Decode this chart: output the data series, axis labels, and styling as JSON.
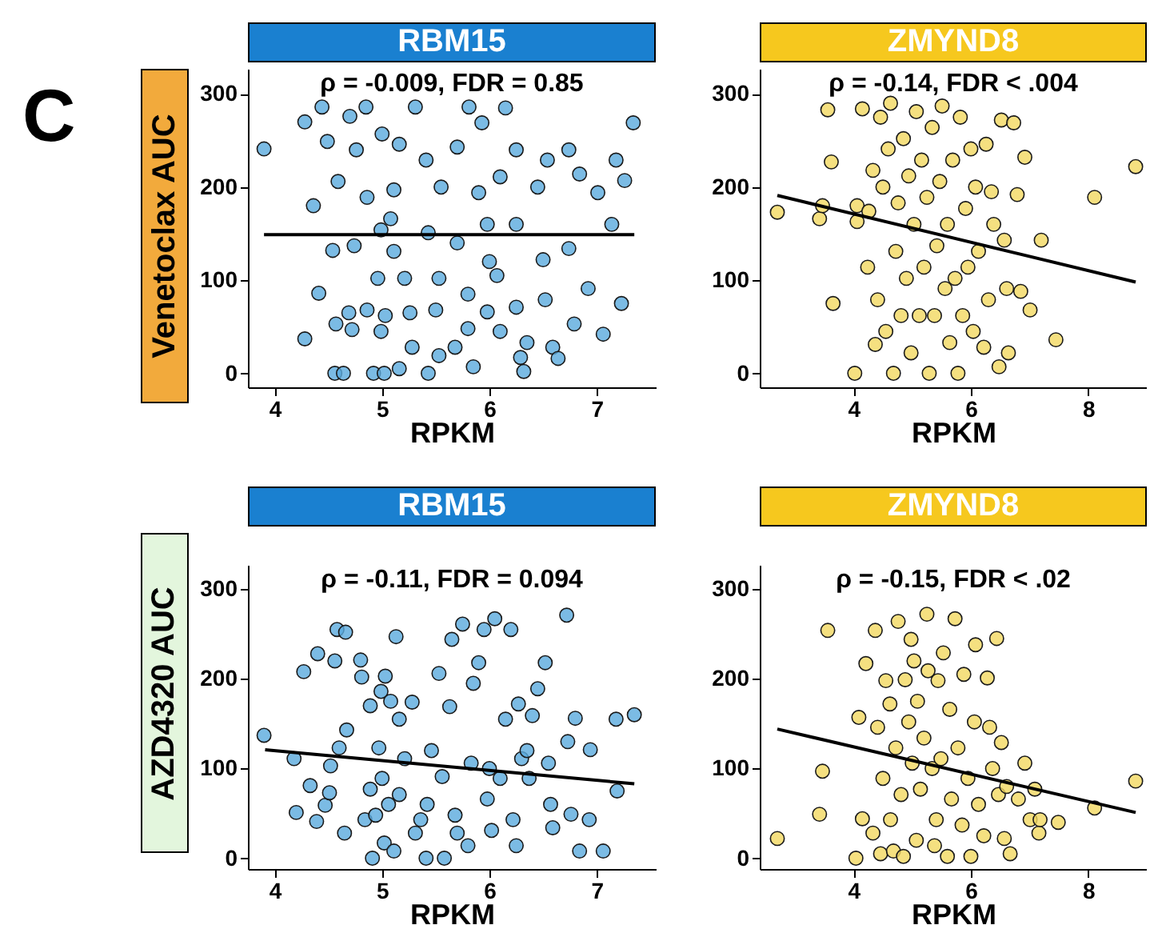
{
  "chart_data": [
    {
      "type": "scatter",
      "title": "RBM15",
      "xlabel": "RPKM",
      "ylabel": "Venetoclax AUC",
      "annotations": [
        "ρ = -0.009, FDR = 0.85",
        "C"
      ],
      "xlim": [
        3.75,
        7.55
      ],
      "xticks": [
        4,
        5,
        6,
        7
      ],
      "ylim": [
        -15,
        327
      ],
      "yticks": [
        0,
        100,
        200,
        300
      ],
      "grid": false,
      "series": [
        {
          "marker": "circle",
          "color": "#5aaadd",
          "x": [
            3.9,
            4.28,
            4.44,
            4.7,
            4.85,
            5.31,
            5.81,
            6.15,
            7.34,
            4.49,
            4.76,
            5.0,
            5.16,
            5.41,
            5.7,
            5.93,
            6.25,
            6.54,
            6.74,
            7.18,
            7.26,
            4.36,
            4.59,
            4.86,
            5.11,
            5.55,
            5.9,
            6.1,
            6.45,
            6.84,
            7.01,
            4.54,
            4.74,
            4.99,
            5.11,
            5.43,
            5.7,
            6.0,
            6.25,
            6.5,
            6.74,
            7.14,
            4.41,
            4.69,
            4.86,
            5.03,
            5.26,
            5.5,
            5.8,
            5.98,
            6.25,
            6.52,
            6.92,
            7.23,
            4.28,
            4.57,
            4.72,
            4.99,
            5.28,
            5.68,
            5.8,
            6.1,
            6.35,
            6.59,
            6.79,
            7.06,
            4.56,
            4.64,
            4.92,
            5.02,
            5.16,
            5.43,
            5.53,
            5.85,
            6.29,
            6.32,
            6.64,
            4.96,
            5.21,
            5.53,
            6.07,
            5.08,
            5.98
          ],
          "values": [
            241,
            270,
            286,
            276,
            286,
            286,
            286,
            285,
            269,
            249,
            240,
            257,
            246,
            229,
            243,
            269,
            240,
            229,
            240,
            229,
            207,
            180,
            206,
            189,
            197,
            200,
            194,
            211,
            200,
            214,
            194,
            132,
            137,
            154,
            131,
            151,
            140,
            120,
            160,
            122,
            134,
            160,
            86,
            65,
            68,
            62,
            65,
            68,
            85,
            66,
            71,
            79,
            91,
            75,
            37,
            53,
            47,
            45,
            28,
            28,
            48,
            45,
            33,
            28,
            53,
            42,
            0,
            0,
            0,
            0,
            5,
            0,
            19,
            7,
            17,
            2,
            16,
            102,
            102,
            102,
            105,
            166,
            160
          ]
        },
        {
          "type": "line",
          "marker": "none",
          "color": "#000000",
          "x": [
            3.9,
            7.35
          ],
          "values": [
            149,
            149
          ]
        }
      ]
    },
    {
      "type": "scatter",
      "title": "ZMYND8",
      "xlabel": "RPKM",
      "annotations": [
        "ρ = -0.14, FDR < .004"
      ],
      "xlim": [
        2.4,
        9.0
      ],
      "xticks": [
        4,
        6,
        8
      ],
      "ylim": [
        -15,
        327
      ],
      "yticks": [
        0,
        100,
        200,
        300
      ],
      "grid": false,
      "series": [
        {
          "marker": "circle",
          "color": "#f2d860",
          "x": [
            2.7,
            3.42,
            3.47,
            3.56,
            3.62,
            3.65,
            4.02,
            4.06,
            4.06,
            4.15,
            4.24,
            4.26,
            4.33,
            4.37,
            4.41,
            4.46,
            4.5,
            4.55,
            4.59,
            4.63,
            4.68,
            4.72,
            4.76,
            4.81,
            4.85,
            4.9,
            4.94,
            4.98,
            5.03,
            5.07,
            5.12,
            5.16,
            5.2,
            5.25,
            5.29,
            5.34,
            5.38,
            5.42,
            5.47,
            5.51,
            5.56,
            5.6,
            5.64,
            5.69,
            5.73,
            5.78,
            5.82,
            5.86,
            5.91,
            5.95,
            6.0,
            6.04,
            6.08,
            6.13,
            6.22,
            6.26,
            6.3,
            6.35,
            6.39,
            6.48,
            6.52,
            6.57,
            6.61,
            6.64,
            6.73,
            6.79,
            6.85,
            6.92,
            7.01,
            7.2,
            7.45,
            8.11,
            8.81
          ],
          "values": [
            173,
            166,
            180,
            283,
            227,
            75,
            0,
            180,
            163,
            284,
            114,
            174,
            218,
            31,
            79,
            275,
            200,
            45,
            241,
            290,
            0,
            131,
            183,
            62,
            252,
            102,
            212,
            22,
            160,
            281,
            62,
            229,
            114,
            189,
            0,
            264,
            62,
            137,
            206,
            287,
            91,
            160,
            33,
            229,
            102,
            0,
            275,
            62,
            177,
            114,
            241,
            45,
            200,
            131,
            28,
            246,
            79,
            195,
            160,
            7,
            272,
            143,
            91,
            22,
            269,
            192,
            88,
            232,
            68,
            143,
            36,
            189,
            222
          ]
        },
        {
          "type": "line",
          "marker": "none",
          "color": "#000000",
          "x": [
            2.7,
            8.81
          ],
          "values": [
            191,
            98
          ]
        }
      ]
    },
    {
      "type": "scatter",
      "title": "RBM15",
      "xlabel": "RPKM",
      "ylabel": "AZD4320 AUC",
      "annotations": [
        "ρ = -0.11, FDR = 0.094"
      ],
      "xlim": [
        3.75,
        7.55
      ],
      "xticks": [
        4,
        5,
        6,
        7
      ],
      "ylim": [
        -12,
        327
      ],
      "yticks": [
        0,
        100,
        200,
        300
      ],
      "grid": false,
      "series": [
        {
          "marker": "circle",
          "color": "#5aaadd",
          "x": [
            3.9,
            4.18,
            4.2,
            4.27,
            4.33,
            4.39,
            4.4,
            4.47,
            4.51,
            4.52,
            4.56,
            4.58,
            4.6,
            4.65,
            4.66,
            4.67,
            4.8,
            4.81,
            4.84,
            4.89,
            4.89,
            4.91,
            4.94,
            4.97,
            4.99,
            5.0,
            5.02,
            5.03,
            5.06,
            5.08,
            5.11,
            5.13,
            5.16,
            5.16,
            5.21,
            5.28,
            5.31,
            5.36,
            5.41,
            5.42,
            5.46,
            5.53,
            5.56,
            5.58,
            5.63,
            5.65,
            5.68,
            5.7,
            5.75,
            5.8,
            5.83,
            5.85,
            5.9,
            5.95,
            5.98,
            6.0,
            6.02,
            6.05,
            6.1,
            6.15,
            6.2,
            6.22,
            6.25,
            6.27,
            6.3,
            6.35,
            6.37,
            6.4,
            6.45,
            6.52,
            6.55,
            6.57,
            6.59,
            6.72,
            6.73,
            6.76,
            6.8,
            6.84,
            6.93,
            6.94,
            7.06,
            7.18,
            7.19,
            7.35
          ],
          "values": [
            137,
            111,
            51,
            208,
            81,
            41,
            228,
            59,
            73,
            103,
            220,
            255,
            123,
            28,
            252,
            143,
            221,
            202,
            43,
            77,
            170,
            0,
            48,
            123,
            186,
            89,
            17,
            203,
            60,
            175,
            8,
            247,
            155,
            71,
            111,
            174,
            28,
            43,
            0,
            60,
            120,
            206,
            91,
            0,
            169,
            244,
            48,
            28,
            261,
            14,
            106,
            195,
            218,
            255,
            66,
            100,
            31,
            267,
            89,
            155,
            255,
            43,
            14,
            172,
            111,
            120,
            89,
            159,
            189,
            218,
            106,
            60,
            34,
            271,
            130,
            49,
            156,
            8,
            43,
            121,
            8,
            155,
            75,
            160
          ]
        },
        {
          "type": "line",
          "marker": "none",
          "color": "#000000",
          "x": [
            3.91,
            7.35
          ],
          "values": [
            121,
            83
          ]
        }
      ]
    },
    {
      "type": "scatter",
      "title": "ZMYND8",
      "xlabel": "RPKM",
      "annotations": [
        "ρ = -0.15, FDR < .02"
      ],
      "xlim": [
        2.4,
        9.0
      ],
      "xticks": [
        4,
        6,
        8
      ],
      "ylim": [
        -12,
        327
      ],
      "yticks": [
        0,
        100,
        200,
        300
      ],
      "grid": false,
      "series": [
        {
          "marker": "circle",
          "color": "#f2d860",
          "x": [
            2.7,
            3.42,
            3.47,
            3.56,
            4.04,
            4.09,
            4.15,
            4.21,
            4.33,
            4.37,
            4.41,
            4.46,
            4.5,
            4.55,
            4.62,
            4.63,
            4.68,
            4.72,
            4.76,
            4.81,
            4.85,
            4.88,
            4.94,
            4.98,
            5.0,
            5.03,
            5.07,
            5.09,
            5.14,
            5.2,
            5.25,
            5.27,
            5.34,
            5.38,
            5.41,
            5.44,
            5.49,
            5.53,
            5.6,
            5.64,
            5.67,
            5.73,
            5.78,
            5.85,
            5.88,
            5.95,
            6.0,
            6.06,
            6.08,
            6.13,
            6.22,
            6.28,
            6.32,
            6.37,
            6.44,
            6.47,
            6.52,
            6.57,
            6.61,
            6.67,
            6.81,
            6.92,
            7.01,
            7.09,
            7.16,
            7.18,
            7.49,
            8.11,
            8.81
          ],
          "values": [
            22,
            49,
            97,
            254,
            0,
            157,
            44,
            217,
            28,
            254,
            146,
            5,
            89,
            198,
            172,
            43,
            8,
            123,
            264,
            71,
            2,
            199,
            152,
            244,
            106,
            220,
            20,
            175,
            77,
            134,
            272,
            209,
            100,
            14,
            43,
            198,
            111,
            229,
            2,
            166,
            66,
            267,
            123,
            37,
            205,
            89,
            2,
            152,
            238,
            60,
            25,
            201,
            146,
            100,
            245,
            71,
            129,
            22,
            80,
            5,
            66,
            106,
            43,
            77,
            28,
            43,
            40,
            56,
            86
          ]
        },
        {
          "type": "line",
          "marker": "none",
          "color": "#000000",
          "x": [
            2.7,
            8.81
          ],
          "values": [
            144,
            51
          ]
        }
      ]
    }
  ]
}
